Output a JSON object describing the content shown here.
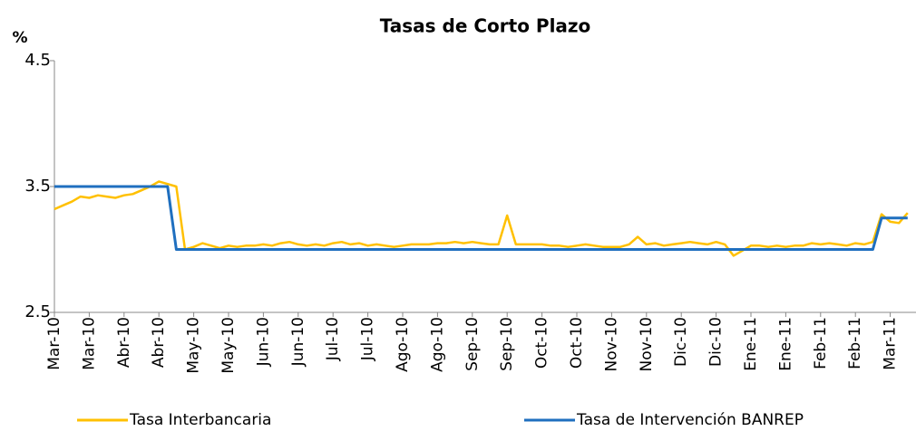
{
  "chart_data": {
    "type": "line",
    "title": "Tasas de Corto Plazo",
    "y_label": "%",
    "categories": [
      "Mar-10",
      null,
      null,
      null,
      "Mar-10",
      null,
      null,
      null,
      "Abr-10",
      null,
      null,
      null,
      "Abr-10",
      null,
      null,
      null,
      "May-10",
      null,
      null,
      null,
      "May-10",
      null,
      null,
      null,
      "Jun-10",
      null,
      null,
      null,
      "Jun-10",
      null,
      null,
      null,
      "Jul-10",
      null,
      null,
      null,
      "Jul-10",
      null,
      null,
      null,
      "Ago-10",
      null,
      null,
      null,
      "Ago-10",
      null,
      null,
      null,
      "Sep-10",
      null,
      null,
      null,
      "Sep-10",
      null,
      null,
      null,
      "Oct-10",
      null,
      null,
      null,
      "Oct-10",
      null,
      null,
      null,
      "Nov-10",
      null,
      null,
      null,
      "Nov-10",
      null,
      null,
      null,
      "Dic-10",
      null,
      null,
      null,
      "Dic-10",
      null,
      null,
      null,
      "Ene-11",
      null,
      null,
      null,
      "Ene-11",
      null,
      null,
      null,
      "Feb-11",
      null,
      null,
      null,
      "Feb-11",
      null,
      null,
      null,
      "Mar-11",
      null,
      null
    ],
    "series": [
      {
        "name": "Tasa Interbancaria",
        "color": "#ffc000",
        "values": [
          3.32,
          3.35,
          3.38,
          3.42,
          3.41,
          3.43,
          3.42,
          3.41,
          3.43,
          3.44,
          3.47,
          3.5,
          3.54,
          3.52,
          3.5,
          3.0,
          3.02,
          3.05,
          3.03,
          3.01,
          3.03,
          3.02,
          3.03,
          3.03,
          3.04,
          3.03,
          3.05,
          3.06,
          3.04,
          3.03,
          3.04,
          3.03,
          3.05,
          3.06,
          3.04,
          3.05,
          3.03,
          3.04,
          3.03,
          3.02,
          3.03,
          3.04,
          3.04,
          3.04,
          3.05,
          3.05,
          3.06,
          3.05,
          3.06,
          3.05,
          3.04,
          3.04,
          3.27,
          3.04,
          3.04,
          3.04,
          3.04,
          3.03,
          3.03,
          3.02,
          3.03,
          3.04,
          3.03,
          3.02,
          3.02,
          3.02,
          3.04,
          3.1,
          3.04,
          3.05,
          3.03,
          3.04,
          3.05,
          3.06,
          3.05,
          3.04,
          3.06,
          3.04,
          2.95,
          2.99,
          3.03,
          3.03,
          3.02,
          3.03,
          3.02,
          3.03,
          3.03,
          3.05,
          3.04,
          3.05,
          3.04,
          3.03,
          3.05,
          3.04,
          3.06,
          3.28,
          3.22,
          3.21,
          3.29
        ]
      },
      {
        "name": "Tasa de Intervención BANREP",
        "color": "#1f6fbf",
        "values": [
          3.5,
          3.5,
          3.5,
          3.5,
          3.5,
          3.5,
          3.5,
          3.5,
          3.5,
          3.5,
          3.5,
          3.5,
          3.5,
          3.5,
          3.0,
          3.0,
          3.0,
          3.0,
          3.0,
          3.0,
          3.0,
          3.0,
          3.0,
          3.0,
          3.0,
          3.0,
          3.0,
          3.0,
          3.0,
          3.0,
          3.0,
          3.0,
          3.0,
          3.0,
          3.0,
          3.0,
          3.0,
          3.0,
          3.0,
          3.0,
          3.0,
          3.0,
          3.0,
          3.0,
          3.0,
          3.0,
          3.0,
          3.0,
          3.0,
          3.0,
          3.0,
          3.0,
          3.0,
          3.0,
          3.0,
          3.0,
          3.0,
          3.0,
          3.0,
          3.0,
          3.0,
          3.0,
          3.0,
          3.0,
          3.0,
          3.0,
          3.0,
          3.0,
          3.0,
          3.0,
          3.0,
          3.0,
          3.0,
          3.0,
          3.0,
          3.0,
          3.0,
          3.0,
          3.0,
          3.0,
          3.0,
          3.0,
          3.0,
          3.0,
          3.0,
          3.0,
          3.0,
          3.0,
          3.0,
          3.0,
          3.0,
          3.0,
          3.0,
          3.0,
          3.0,
          3.25,
          3.25,
          3.25,
          3.25
        ]
      }
    ],
    "ylim": [
      2.5,
      4.5
    ],
    "yticks": [
      2.5,
      3.5,
      4.5
    ],
    "grid": false,
    "legend": "bottom"
  }
}
